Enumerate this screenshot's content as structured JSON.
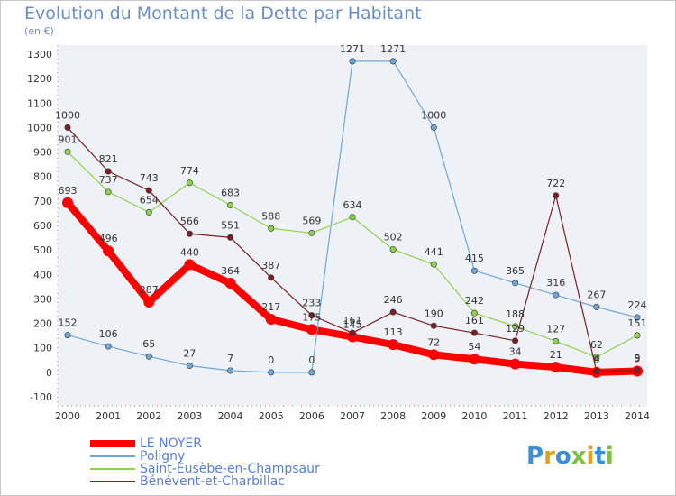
{
  "title": "Evolution du Montant de la Dette par Habitant",
  "unit": "(en €)",
  "logo": {
    "text": "Proxiti",
    "colors": [
      "#3a8fd6",
      "#e0a31a",
      "#3a8fd6",
      "#7ac143",
      "#e0a31a",
      "#3a8fd6",
      "#7ac143"
    ]
  },
  "chart_data": {
    "type": "line",
    "x": [
      "2000",
      "2001",
      "2002",
      "2003",
      "2004",
      "2005",
      "2006",
      "2007",
      "2008",
      "2009",
      "2010",
      "2011",
      "2012",
      "2013",
      "2014"
    ],
    "ylim": [
      -100,
      1300
    ],
    "yticks": [
      -100,
      0,
      100,
      200,
      300,
      400,
      500,
      600,
      700,
      800,
      900,
      1000,
      1100,
      1200,
      1300
    ],
    "grid": false,
    "legend": "bottom-left",
    "series": [
      {
        "name": "LE NOYER",
        "color": "#ff0000",
        "thick": true,
        "values": [
          693,
          496,
          287,
          440,
          364,
          217,
          175,
          145,
          113,
          72,
          54,
          34,
          21,
          0,
          5
        ]
      },
      {
        "name": "Poligny",
        "color": "#6fa8d6",
        "thick": false,
        "values": [
          152,
          106,
          65,
          27,
          7,
          0,
          0,
          1271,
          1271,
          1000,
          415,
          365,
          316,
          267,
          224
        ]
      },
      {
        "name": "Saint-Eusèbe-en-Champsaur",
        "color": "#8fd14f",
        "thick": false,
        "values": [
          901,
          737,
          654,
          774,
          683,
          588,
          569,
          634,
          502,
          441,
          242,
          188,
          127,
          62,
          151
        ]
      },
      {
        "name": "Bénévent-et-Charbillac",
        "color": "#7a1f24",
        "thick": false,
        "values": [
          1000,
          821,
          743,
          566,
          551,
          387,
          233,
          161,
          246,
          190,
          161,
          129,
          722,
          4,
          9
        ]
      }
    ]
  }
}
